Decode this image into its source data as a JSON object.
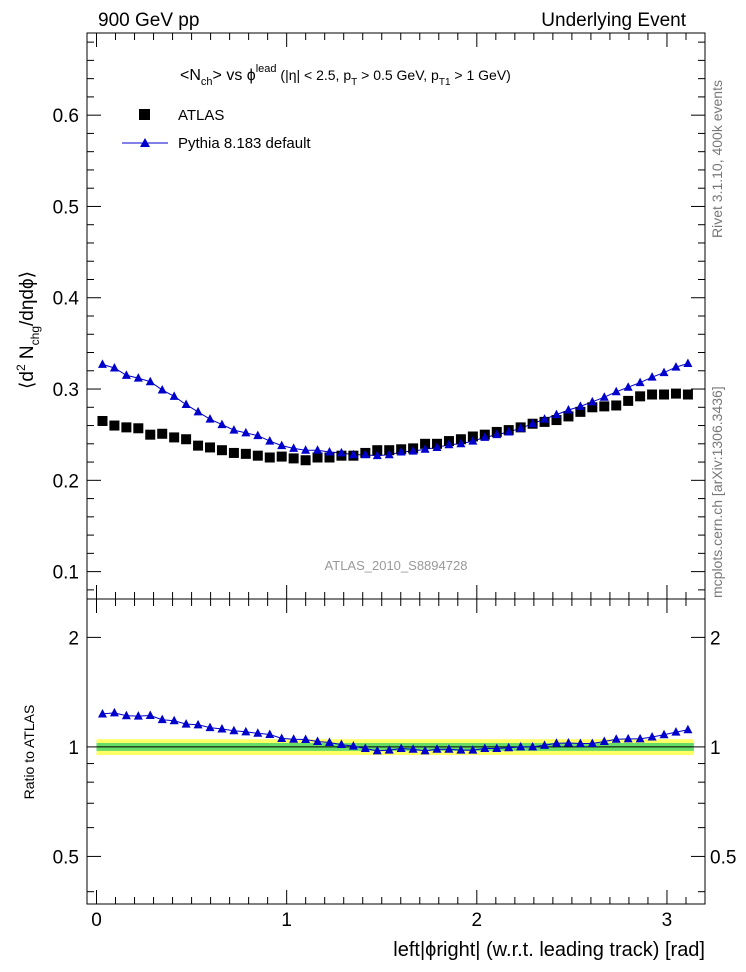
{
  "header": {
    "left_label": "900 GeV pp",
    "right_label": "Underlying Event"
  },
  "side_text": {
    "rivet": "Rivet 3.1.10,  400k events",
    "mcplots": "mcplots.cern.ch [arXiv:1306.3436]"
  },
  "main_panel": {
    "ylabel": {
      "prefix": "⟨d",
      "exp": "2",
      "n": " N",
      "sub": "chg",
      "suffix": "/dηdϕ⟩"
    },
    "title": {
      "n_open": "<N",
      "n_sub": "ch",
      "n_close": "> vs ϕ",
      "lead_sup": "lead",
      "eta": " (|η| < 2.5, p",
      "pt_sub": "T",
      "pt_rest": " > 0.5 GeV, p",
      "pt1_sub": "T1",
      "pt1_rest": " > 1 GeV)"
    },
    "watermark": "ATLAS_2010_S8894728",
    "legend": [
      {
        "label": "ATLAS",
        "marker": "square",
        "color": "#000000"
      },
      {
        "label": "Pythia 8.183 default",
        "marker": "triangle",
        "color": "#0000cc"
      }
    ],
    "y_ticks": [
      "0.1",
      "0.2",
      "0.3",
      "0.4",
      "0.5",
      "0.6"
    ]
  },
  "ratio_panel": {
    "ylabel": "Ratio to ATLAS",
    "y_ticks": [
      "0.5",
      "1",
      "2"
    ]
  },
  "x_axis": {
    "label": "left|ϕright| (w.r.t. leading track) [rad]",
    "ticks": [
      "0",
      "1",
      "2",
      "3"
    ]
  },
  "chart_data": {
    "type": "scatter",
    "title": "<N_ch> vs phi^lead (|eta| < 2.5, p_T > 0.5 GeV, p_T1 > 1 GeV)",
    "xlabel": "left|phiright| (w.r.t. leading track) [rad]",
    "ylabel": "<d2 N_chg/deta dphi>",
    "xlim": [
      -0.05,
      3.2
    ],
    "ylim": [
      0.07,
      0.69
    ],
    "ratio_ylim": [
      0.37,
      2.55
    ],
    "x": [
      0.0314,
      0.0942,
      0.1571,
      0.2199,
      0.2827,
      0.3456,
      0.4084,
      0.4712,
      0.5341,
      0.5969,
      0.6597,
      0.7226,
      0.7854,
      0.8482,
      0.9111,
      0.9739,
      1.0367,
      1.0996,
      1.1624,
      1.2252,
      1.2881,
      1.3509,
      1.4137,
      1.4765,
      1.5394,
      1.6022,
      1.665,
      1.7279,
      1.7907,
      1.8535,
      1.9164,
      1.9792,
      2.042,
      2.1049,
      2.1677,
      2.2305,
      2.2934,
      2.3562,
      2.419,
      2.4819,
      2.5447,
      2.6075,
      2.6704,
      2.7332,
      2.796,
      2.8588,
      2.9217,
      2.9845,
      3.0473,
      3.1102
    ],
    "series": [
      {
        "name": "ATLAS",
        "values": [
          0.265,
          0.26,
          0.258,
          0.257,
          0.25,
          0.251,
          0.247,
          0.245,
          0.238,
          0.236,
          0.233,
          0.23,
          0.229,
          0.227,
          0.225,
          0.226,
          0.224,
          0.222,
          0.225,
          0.225,
          0.227,
          0.227,
          0.23,
          0.233,
          0.233,
          0.234,
          0.235,
          0.24,
          0.24,
          0.243,
          0.245,
          0.248,
          0.25,
          0.253,
          0.255,
          0.258,
          0.262,
          0.264,
          0.266,
          0.27,
          0.275,
          0.28,
          0.281,
          0.282,
          0.287,
          0.292,
          0.294,
          0.294,
          0.295,
          0.294
        ],
        "ratio": [
          1.0,
          1.0,
          1.0,
          1.0,
          1.0,
          1.0,
          1.0,
          1.0,
          1.0,
          1.0,
          1.0,
          1.0,
          1.0,
          1.0,
          1.0,
          1.0,
          1.0,
          1.0,
          1.0,
          1.0,
          1.0,
          1.0,
          1.0,
          1.0,
          1.0,
          1.0,
          1.0,
          1.0,
          1.0,
          1.0,
          1.0,
          1.0,
          1.0,
          1.0,
          1.0,
          1.0,
          1.0,
          1.0,
          1.0,
          1.0,
          1.0,
          1.0,
          1.0,
          1.0,
          1.0,
          1.0,
          1.0,
          1.0,
          1.0,
          1.0
        ]
      },
      {
        "name": "Pythia 8.183 default",
        "values": [
          0.327,
          0.323,
          0.315,
          0.312,
          0.308,
          0.299,
          0.292,
          0.283,
          0.275,
          0.267,
          0.261,
          0.255,
          0.252,
          0.249,
          0.243,
          0.238,
          0.235,
          0.233,
          0.233,
          0.231,
          0.23,
          0.228,
          0.228,
          0.227,
          0.228,
          0.231,
          0.232,
          0.234,
          0.236,
          0.239,
          0.24,
          0.243,
          0.247,
          0.25,
          0.253,
          0.257,
          0.262,
          0.267,
          0.272,
          0.277,
          0.281,
          0.286,
          0.291,
          0.297,
          0.302,
          0.307,
          0.313,
          0.318,
          0.324,
          0.328
        ],
        "ratio": [
          1.232,
          1.24,
          1.218,
          1.215,
          1.22,
          1.188,
          1.18,
          1.155,
          1.15,
          1.13,
          1.12,
          1.108,
          1.1,
          1.09,
          1.082,
          1.055,
          1.05,
          1.048,
          1.035,
          1.028,
          1.015,
          1.005,
          0.99,
          0.975,
          0.98,
          0.99,
          0.985,
          0.975,
          0.985,
          0.985,
          0.98,
          0.98,
          0.99,
          0.99,
          0.995,
          1.0,
          1.0,
          1.01,
          1.023,
          1.025,
          1.022,
          1.022,
          1.035,
          1.05,
          1.052,
          1.052,
          1.065,
          1.08,
          1.098,
          1.115
        ]
      }
    ],
    "ratio_band": {
      "color_inner": "#66dd66",
      "color_outer": "#ffff66",
      "inner_halfwidth": 0.025,
      "outer_halfwidth": 0.05
    },
    "grid": false,
    "legend_position": "top-left"
  }
}
